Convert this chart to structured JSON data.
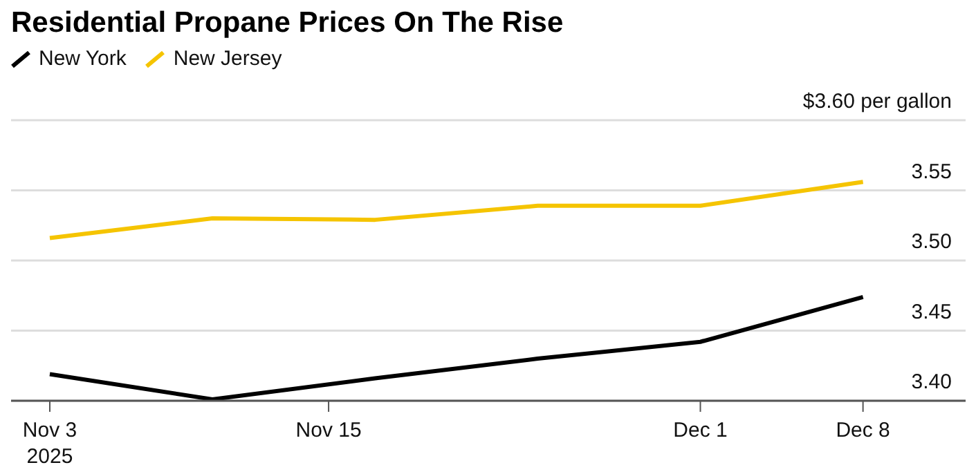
{
  "chart_data": {
    "type": "line",
    "title": "Residential Propane Prices On The Rise",
    "x": [
      "2025-11-03",
      "2025-11-10",
      "2025-11-17",
      "2025-11-24",
      "2025-12-01",
      "2025-12-08"
    ],
    "series": [
      {
        "name": "New York",
        "color": "#000000",
        "values": [
          3.419,
          3.401,
          3.416,
          3.43,
          3.442,
          3.474
        ]
      },
      {
        "name": "New Jersey",
        "color": "#f5c400",
        "values": [
          3.516,
          3.53,
          3.529,
          3.539,
          3.539,
          3.556
        ]
      }
    ],
    "xlim": [
      "2025-11-01T08:00",
      "2025-12-12T10:00"
    ],
    "xticks": [
      {
        "value": "2025-11-03",
        "label": "Nov 3\n2025"
      },
      {
        "value": "2025-11-15",
        "label": "Nov 15"
      },
      {
        "value": "2025-12-01",
        "label": "Dec 1"
      },
      {
        "value": "2025-12-08",
        "label": "Dec 8"
      }
    ],
    "ylim": [
      3.4,
      3.6
    ],
    "yticks": [
      {
        "value": 3.4,
        "label": "3.40"
      },
      3.45,
      {
        "value": 3.5,
        "label": "3.50"
      },
      3.55,
      {
        "value": 3.6,
        "label": "$3.60 per gallon"
      }
    ],
    "grid": "y",
    "legend": "top left",
    "marker": "none"
  }
}
